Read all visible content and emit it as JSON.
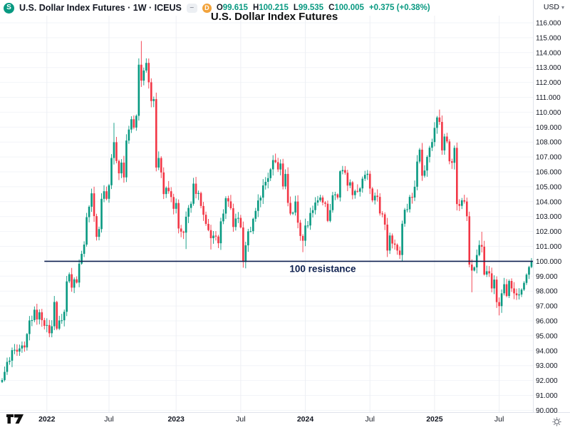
{
  "header": {
    "logo_letter": "S",
    "symbol_line": "U.S. Dollar Index Futures · 1W · ICEUS",
    "badge_minus": "–",
    "badge_delayed": "D",
    "ohlc": {
      "o_label": "O",
      "o": "99.615",
      "h_label": "H",
      "h": "100.215",
      "l_label": "L",
      "l": "99.535",
      "c_label": "C",
      "c": "100.005",
      "change": "+0.375 (+0.38%)"
    },
    "currency": "USD"
  },
  "chart_title": "U.S. Dollar Index Futures",
  "annotation": {
    "label": "100 resistance",
    "price": 100,
    "start_index": 17,
    "label_index": 129
  },
  "chart_data": {
    "type": "candlestick",
    "title": "U.S. Dollar Index Futures",
    "symbol": "U.S. Dollar Index Futures · 1W · ICEUS",
    "timeframe": "1W",
    "y_axis": {
      "min": 90,
      "max": 116,
      "step": 1,
      "decimals": 3
    },
    "x_ticks": [
      {
        "label": "2022",
        "index": 18,
        "kind": "year"
      },
      {
        "label": "Jul",
        "index": 43,
        "kind": "month"
      },
      {
        "label": "2023",
        "index": 70,
        "kind": "year"
      },
      {
        "label": "Jul",
        "index": 96,
        "kind": "month"
      },
      {
        "label": "2024",
        "index": 122,
        "kind": "year"
      },
      {
        "label": "Jul",
        "index": 148,
        "kind": "month"
      },
      {
        "label": "2025",
        "index": 174,
        "kind": "year"
      },
      {
        "label": "Jul",
        "index": 200,
        "kind": "month"
      }
    ],
    "first_open": 91.9,
    "closes": [
      92.03,
      92.58,
      93.25,
      93.33,
      94.04,
      94.06,
      93.94,
      94.15,
      94.35,
      94.22,
      95.12,
      96.03,
      96.05,
      96.75,
      96.1,
      96.58,
      96.05,
      95.67,
      95.72,
      95.17,
      95.64,
      97.27,
      95.48,
      96.03,
      96.04,
      96.61,
      98.65,
      99.13,
      98.23,
      98.79,
      98.57,
      99.84,
      100.5,
      101.12,
      102.96,
      103.66,
      104.56,
      103.03,
      101.64,
      102.16,
      104.19,
      104.7,
      104.19,
      105.1,
      106.93,
      107.99,
      106.73,
      105.9,
      106.62,
      105.63,
      108.1,
      108.84,
      109.53,
      108.97,
      109.76,
      113.19,
      112.12,
      112.8,
      113.31,
      112.01,
      110.75,
      110.88,
      106.29,
      106.93,
      105.96,
      104.51,
      104.93,
      104.7,
      104.31,
      103.52,
      103.91,
      102.2,
      101.99,
      101.92,
      102.99,
      103.58,
      103.86,
      105.21,
      104.52,
      104.58,
      103.71,
      103.12,
      102.51,
      102.09,
      101.55,
      101.72,
      101.66,
      101.21,
      102.68,
      103.2,
      104.23,
      104.02,
      103.56,
      102.3,
      102.87,
      102.91,
      102.27,
      99.96,
      101.07,
      102.01,
      102.02,
      102.85,
      103.38,
      104.08,
      104.27,
      105.09,
      105.33,
      105.58,
      106.17,
      106.79,
      106.65,
      106.16,
      106.56,
      105.02,
      105.86,
      103.92,
      103.2,
      103.27,
      104.01,
      102.59,
      101.7,
      101.38,
      102.4,
      102.4,
      103.24,
      103.43,
      103.94,
      104.09,
      104.28,
      103.94,
      103.86,
      102.71,
      103.43,
      104.43,
      104.49,
      104.28,
      106.04,
      106.12,
      105.94,
      105.08,
      105.3,
      104.44,
      104.72,
      104.67,
      104.89,
      105.54,
      105.8,
      105.87,
      104.88,
      104.09,
      104.4,
      104.32,
      103.21,
      103.15,
      102.46,
      100.72,
      101.73,
      101.19,
      101.11,
      100.72,
      100.42,
      102.52,
      103.46,
      103.49,
      104.32,
      104.28,
      105.0,
      106.69,
      107.49,
      105.74,
      106.09,
      107.0,
      107.62,
      108.0,
      108.95,
      109.65,
      109.35,
      107.44,
      108.37,
      108.04,
      106.71,
      106.61,
      107.61,
      103.84,
      103.72,
      104.09,
      104.01,
      103.02,
      99.78,
      99.38,
      99.59,
      100.42,
      101.09,
      100.98,
      99.11,
      99.33,
      99.19,
      98.18,
      98.77,
      97.26,
      96.99,
      97.85,
      98.46,
      97.67,
      98.68,
      98.18,
      97.85,
      97.72,
      97.77,
      98.1,
      98.55,
      99.1,
      99.615,
      100.005
    ],
    "overrides": {
      "45": {
        "h": 109.29
      },
      "56": {
        "h": 114.78
      },
      "74": {
        "l": 100.82
      },
      "84": {
        "l": 100.79
      },
      "97": {
        "l": 99.57
      },
      "121": {
        "l": 100.61
      },
      "160": {
        "l": 100.16
      },
      "176": {
        "h": 110.18
      },
      "189": {
        "l": 97.92
      },
      "193": {
        "h": 101.98
      },
      "200": {
        "l": 96.37
      },
      "213": {
        "o": 99.615,
        "h": 100.215,
        "l": 99.535,
        "c": 100.005
      }
    },
    "colors": {
      "up": "#089981",
      "down": "#f23645",
      "annotation": "#0f2150",
      "grid_h": "#f2f4f8",
      "grid_v": "#edeff4",
      "axis_text": "#131722",
      "axis_border": "#e0e3eb"
    },
    "legend_position": "top-left",
    "grid": true
  }
}
